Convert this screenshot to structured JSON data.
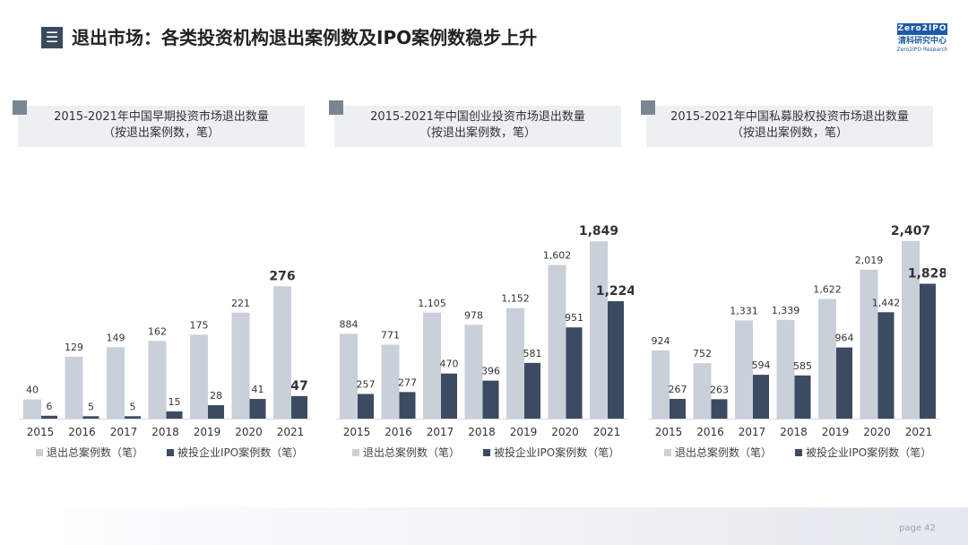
{
  "header": {
    "title_icon": "☰",
    "title": "退出市场：各类投资机构退出案例数及IPO案例数稳步上升",
    "brand_logo": "Zero2IPO",
    "brand_cn": "清科研究中心",
    "brand_en": "Zero2IPO Research"
  },
  "footer": {
    "page_label": "page  42"
  },
  "colors": {
    "total": "#c9d0da",
    "ipo": "#3c4b61",
    "header_bg": "#edf0f3"
  },
  "legend": {
    "total": "退出总案例数（笔）",
    "ipo": "被投企业IPO案例数（笔）"
  },
  "chart_data": [
    {
      "type": "bar",
      "title": "2015-2021年中国早期投资市场退出数量",
      "subtitle": "（按退出案例数，笔）",
      "categories": [
        "2015",
        "2016",
        "2017",
        "2018",
        "2019",
        "2020",
        "2021"
      ],
      "series": [
        {
          "name": "退出总案例数（笔）",
          "values": [
            40,
            129,
            149,
            162,
            175,
            221,
            276
          ],
          "labels": [
            "40",
            "129",
            "149",
            "162",
            "175",
            "221",
            "276"
          ]
        },
        {
          "name": "被投企业IPO案例数（笔）",
          "values": [
            6,
            5,
            5,
            15,
            28,
            41,
            47
          ],
          "labels": [
            "6",
            "5",
            "5",
            "15",
            "28",
            "41",
            "47"
          ]
        }
      ],
      "ylim": [
        0,
        400
      ]
    },
    {
      "type": "bar",
      "title": "2015-2021年中国创业投资市场退出数量",
      "subtitle": "（按退出案例数，笔）",
      "categories": [
        "2015",
        "2016",
        "2017",
        "2018",
        "2019",
        "2020",
        "2021"
      ],
      "series": [
        {
          "name": "退出总案例数（笔）",
          "values": [
            884,
            771,
            1105,
            978,
            1152,
            1602,
            1849
          ],
          "labels": [
            "884",
            "771",
            "1,105",
            "978",
            "1,152",
            "1,602",
            "1,849"
          ]
        },
        {
          "name": "被投企业IPO案例数（笔）",
          "values": [
            257,
            277,
            470,
            396,
            581,
            951,
            1224
          ],
          "labels": [
            "257",
            "277",
            "470",
            "396",
            "581",
            "951",
            "1,224"
          ]
        }
      ],
      "ylim": [
        0,
        2000
      ]
    },
    {
      "type": "bar",
      "title": "2015-2021年中国私募股权投资市场退出数量",
      "subtitle": "（按退出案例数，笔）",
      "categories": [
        "2015",
        "2016",
        "2017",
        "2018",
        "2019",
        "2020",
        "2021"
      ],
      "series": [
        {
          "name": "退出总案例数（笔）",
          "values": [
            924,
            752,
            1331,
            1339,
            1622,
            2019,
            2407
          ],
          "labels": [
            "924",
            "752",
            "1,331",
            "1,339",
            "1,622",
            "2,019",
            "2,407"
          ]
        },
        {
          "name": "被投企业IPO案例数（笔）",
          "values": [
            267,
            263,
            594,
            585,
            964,
            1442,
            1828
          ],
          "labels": [
            "267",
            "263",
            "594",
            "585",
            "964",
            "1,442",
            "1,828"
          ]
        }
      ],
      "ylim": [
        0,
        2600
      ]
    }
  ]
}
